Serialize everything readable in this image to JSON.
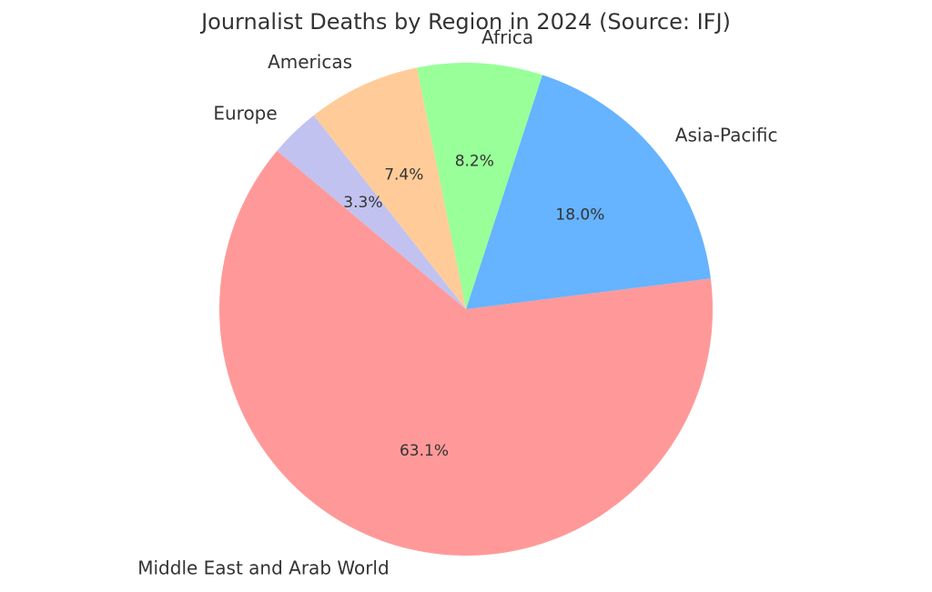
{
  "chart_data": {
    "type": "pie",
    "title": "Journalist Deaths by Region in 2024 (Source: IFJ)",
    "start_angle_deg": 140,
    "direction": "counterclockwise",
    "slices": [
      {
        "label": "Middle East and Arab World",
        "value": 63.1,
        "pct_label": "63.1%",
        "color": "#ff9999"
      },
      {
        "label": "Asia-Pacific",
        "value": 18.0,
        "pct_label": "18.0%",
        "color": "#66b3ff"
      },
      {
        "label": "Africa",
        "value": 8.2,
        "pct_label": "8.2%",
        "color": "#99ff99"
      },
      {
        "label": "Americas",
        "value": 7.4,
        "pct_label": "7.4%",
        "color": "#ffcc99"
      },
      {
        "label": "Europe",
        "value": 3.3,
        "pct_label": "3.3%",
        "color": "#c2c2f0"
      }
    ]
  }
}
